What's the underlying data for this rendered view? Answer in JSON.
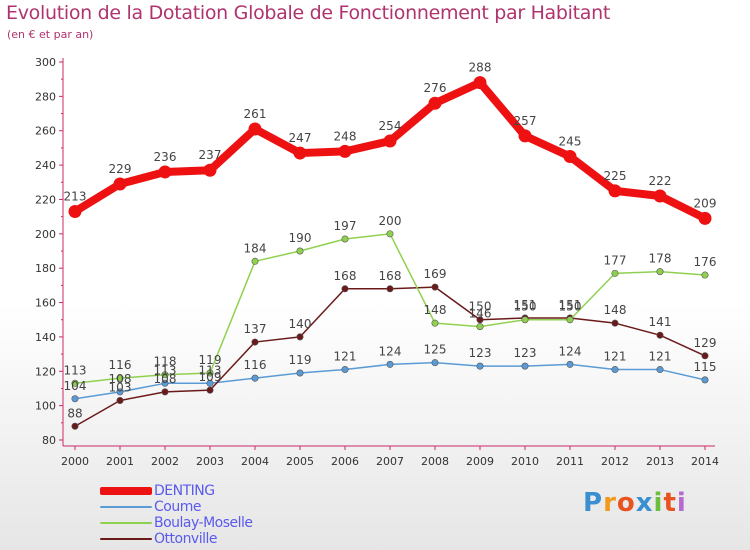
{
  "title": "Evolution de la Dotation Globale de Fonctionnement par Habitant",
  "subtitle": "(en € et par an)",
  "brand": [
    "P",
    "r",
    "o",
    "x",
    "i",
    "t",
    "i"
  ],
  "chart_data": {
    "type": "line",
    "x": [
      "2000",
      "2001",
      "2002",
      "2003",
      "2004",
      "2005",
      "2006",
      "2007",
      "2008",
      "2009",
      "2010",
      "2011",
      "2012",
      "2013",
      "2014"
    ],
    "ylim": [
      80,
      300
    ],
    "yticks": [
      80,
      100,
      120,
      140,
      160,
      180,
      200,
      220,
      240,
      260,
      280,
      300
    ],
    "grid": false,
    "legend_position": "bottom-left",
    "series": [
      {
        "name": "DENTING",
        "color": "#ee1111",
        "values": [
          213,
          229,
          236,
          237,
          261,
          247,
          248,
          254,
          276,
          288,
          257,
          245,
          225,
          222,
          209
        ]
      },
      {
        "name": "Coume",
        "color": "#5b9bd5",
        "values": [
          104,
          108,
          113,
          113,
          116,
          119,
          121,
          124,
          125,
          123,
          123,
          124,
          121,
          121,
          115
        ]
      },
      {
        "name": "Boulay-Moselle",
        "color": "#8fd14f",
        "values": [
          113,
          116,
          118,
          119,
          184,
          190,
          197,
          200,
          148,
          146,
          150,
          150,
          177,
          178,
          176
        ]
      },
      {
        "name": "Ottonville",
        "color": "#6b1a1a",
        "values": [
          88,
          103,
          108,
          109,
          137,
          140,
          168,
          168,
          169,
          150,
          151,
          151,
          148,
          141,
          129
        ]
      }
    ]
  }
}
